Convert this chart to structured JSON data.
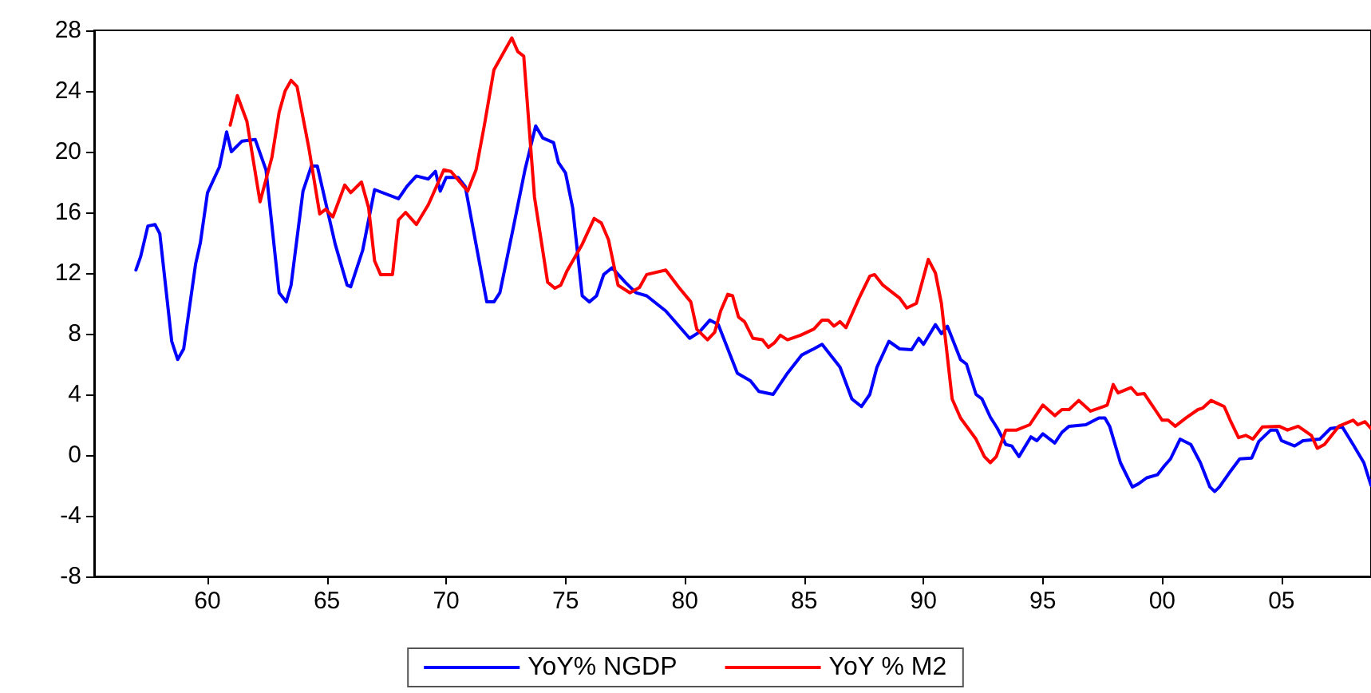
{
  "chart_data": {
    "type": "line",
    "xlim": [
      1955.25,
      2008.75
    ],
    "xticks": [
      {
        "value": 1960,
        "label": "60"
      },
      {
        "value": 1965,
        "label": "65"
      },
      {
        "value": 1970,
        "label": "70"
      },
      {
        "value": 1975,
        "label": "75"
      },
      {
        "value": 1980,
        "label": "80"
      },
      {
        "value": 1985,
        "label": "85"
      },
      {
        "value": 1990,
        "label": "90"
      },
      {
        "value": 1995,
        "label": "95"
      },
      {
        "value": 2000,
        "label": "00"
      },
      {
        "value": 2005,
        "label": "05"
      }
    ],
    "ylim": [
      -8,
      28
    ],
    "yticks": [
      -8,
      -4,
      0,
      4,
      8,
      12,
      16,
      20,
      24,
      28
    ],
    "grid": false,
    "legend": "bottom",
    "marker": "none",
    "line_style": "solid",
    "series": [
      {
        "name": "YoY% NGDP",
        "color": "#0000ff",
        "x": [
          1957.0,
          1957.2,
          1957.5,
          1957.8,
          1958.0,
          1958.5,
          1958.75,
          1959.0,
          1959.5,
          1959.7,
          1960.0,
          1960.5,
          1960.8,
          1961.0,
          1961.45,
          1962.0,
          1962.45,
          1963.0,
          1963.3,
          1963.5,
          1964.0,
          1964.35,
          1964.6,
          1965.35,
          1965.85,
          1966.0,
          1966.5,
          1967.0,
          1968.0,
          1968.35,
          1968.75,
          1969.25,
          1969.55,
          1969.75,
          1970.0,
          1970.5,
          1970.8,
          1971.7,
          1972.0,
          1972.25,
          1972.8,
          1973.3,
          1973.75,
          1974.05,
          1974.5,
          1974.7,
          1975.0,
          1975.3,
          1975.7,
          1976.0,
          1976.3,
          1976.6,
          1976.95,
          1977.5,
          1977.95,
          1978.4,
          1979.2,
          1980.2,
          1980.6,
          1981.05,
          1981.4,
          1982.2,
          1982.75,
          1983.1,
          1983.7,
          1984.3,
          1984.9,
          1985.4,
          1985.75,
          1986.0,
          1986.5,
          1987.0,
          1987.4,
          1987.75,
          1988.05,
          1988.55,
          1989.0,
          1989.5,
          1989.8,
          1990.0,
          1990.5,
          1990.75,
          1991.0,
          1991.55,
          1991.8,
          1992.2,
          1992.45,
          1992.8,
          1993.1,
          1993.45,
          1993.7,
          1994.0,
          1994.5,
          1994.75,
          1995.0,
          1995.5,
          1995.8,
          1996.1,
          1996.8,
          1997.35,
          1997.6,
          1997.8,
          1998.25,
          1998.75,
          1999.0,
          1999.35,
          1999.8,
          2000.1,
          2000.35,
          2000.75,
          2001.2,
          2001.6,
          2002.0,
          2002.2,
          2002.4,
          2002.8,
          2003.25,
          2003.75,
          2004.05,
          2004.55,
          2004.8,
          2005.0,
          2005.55,
          2005.9,
          2006.6,
          2007.05,
          2007.55,
          2008.0,
          2008.45,
          2008.75
        ],
        "values": [
          12.2,
          13.1,
          15.1,
          15.2,
          14.6,
          7.5,
          6.3,
          7.0,
          12.6,
          14.0,
          17.3,
          19.0,
          21.3,
          20.0,
          20.7,
          20.8,
          18.8,
          10.7,
          10.1,
          11.2,
          17.4,
          19.05,
          19.05,
          13.9,
          11.2,
          11.1,
          13.5,
          17.5,
          16.9,
          17.7,
          18.4,
          18.2,
          18.7,
          17.4,
          18.3,
          18.3,
          17.7,
          10.1,
          10.1,
          10.7,
          14.9,
          18.8,
          21.7,
          20.9,
          20.6,
          19.3,
          18.6,
          16.3,
          10.5,
          10.1,
          10.5,
          11.9,
          12.35,
          11.4,
          10.7,
          10.5,
          9.5,
          7.7,
          8.1,
          8.9,
          8.6,
          5.4,
          4.9,
          4.2,
          4.0,
          5.4,
          6.6,
          7.0,
          7.3,
          6.8,
          5.8,
          3.7,
          3.2,
          4.0,
          5.8,
          7.5,
          7.0,
          6.95,
          7.7,
          7.3,
          8.6,
          8.0,
          8.5,
          6.3,
          6.0,
          4.0,
          3.7,
          2.5,
          1.75,
          0.7,
          0.6,
          -0.1,
          1.2,
          0.95,
          1.4,
          0.8,
          1.5,
          1.9,
          2.0,
          2.45,
          2.45,
          1.9,
          -0.5,
          -2.1,
          -1.9,
          -1.5,
          -1.3,
          -0.7,
          -0.25,
          1.05,
          0.7,
          -0.5,
          -2.1,
          -2.4,
          -2.1,
          -1.2,
          -0.25,
          -0.2,
          0.9,
          1.65,
          1.65,
          0.95,
          0.6,
          0.95,
          1.05,
          1.75,
          1.85,
          0.7,
          -0.5,
          -2.0
        ]
      },
      {
        "name": "YoY % M2",
        "color": "#ff0000",
        "x": [
          1960.95,
          1961.25,
          1961.65,
          1962.2,
          1962.7,
          1963.0,
          1963.25,
          1963.5,
          1963.75,
          1964.25,
          1964.7,
          1964.95,
          1965.25,
          1965.75,
          1966.0,
          1966.45,
          1966.75,
          1967.0,
          1967.25,
          1967.75,
          1968.0,
          1968.3,
          1968.75,
          1969.25,
          1969.9,
          1970.2,
          1970.9,
          1971.25,
          1971.6,
          1972.0,
          1972.5,
          1972.75,
          1973.0,
          1973.25,
          1973.7,
          1974.25,
          1974.55,
          1974.8,
          1975.05,
          1975.7,
          1976.2,
          1976.5,
          1976.8,
          1977.2,
          1977.7,
          1978.1,
          1978.4,
          1979.2,
          1979.75,
          1980.25,
          1980.5,
          1980.95,
          1981.25,
          1981.5,
          1981.8,
          1982.0,
          1982.25,
          1982.5,
          1982.85,
          1983.25,
          1983.5,
          1983.75,
          1984.0,
          1984.3,
          1984.85,
          1985.4,
          1985.75,
          1986.0,
          1986.25,
          1986.5,
          1986.75,
          1987.3,
          1987.75,
          1987.95,
          1988.3,
          1989.0,
          1989.3,
          1989.7,
          1990.2,
          1990.5,
          1990.75,
          1991.2,
          1991.55,
          1992.2,
          1992.55,
          1992.8,
          1993.05,
          1993.45,
          1993.9,
          1994.45,
          1995.0,
          1995.5,
          1995.8,
          1996.1,
          1996.5,
          1997.0,
          1997.55,
          1997.7,
          1997.95,
          1998.15,
          1998.7,
          1998.95,
          1999.25,
          1999.7,
          2000.0,
          2000.25,
          2000.55,
          2001.0,
          2001.5,
          2001.7,
          2002.05,
          2002.6,
          2002.85,
          2003.2,
          2003.5,
          2003.8,
          2004.2,
          2004.9,
          2005.25,
          2005.7,
          2006.25,
          2006.5,
          2006.8,
          2007.4,
          2008.0,
          2008.2,
          2008.5,
          2008.75
        ],
        "values": [
          21.75,
          23.7,
          22.0,
          16.7,
          19.65,
          22.6,
          24.0,
          24.7,
          24.3,
          20.2,
          15.9,
          16.2,
          15.7,
          17.8,
          17.3,
          18.0,
          16.3,
          12.8,
          11.9,
          11.9,
          15.5,
          16.0,
          15.2,
          16.5,
          18.8,
          18.7,
          17.4,
          18.8,
          21.75,
          25.4,
          26.8,
          27.5,
          26.6,
          26.3,
          17.0,
          11.4,
          11.0,
          11.2,
          12.1,
          13.9,
          15.6,
          15.3,
          14.2,
          11.2,
          10.7,
          11.05,
          11.9,
          12.2,
          11.05,
          10.1,
          8.3,
          7.6,
          8.1,
          9.5,
          10.6,
          10.5,
          9.1,
          8.8,
          7.7,
          7.6,
          7.1,
          7.4,
          7.9,
          7.6,
          7.9,
          8.3,
          8.9,
          8.9,
          8.5,
          8.8,
          8.4,
          10.35,
          11.8,
          11.9,
          11.2,
          10.35,
          9.7,
          10.0,
          12.9,
          12.0,
          10.0,
          3.7,
          2.45,
          1.05,
          -0.1,
          -0.5,
          -0.1,
          1.65,
          1.65,
          2.0,
          3.3,
          2.6,
          3.0,
          3.0,
          3.6,
          2.9,
          3.2,
          3.3,
          4.65,
          4.1,
          4.45,
          4.0,
          4.05,
          3.0,
          2.3,
          2.3,
          1.9,
          2.45,
          3.0,
          3.1,
          3.6,
          3.2,
          2.3,
          1.15,
          1.3,
          1.05,
          1.85,
          1.9,
          1.65,
          1.9,
          1.3,
          0.45,
          0.7,
          1.9,
          2.3,
          2.0,
          2.2,
          1.75
        ]
      }
    ]
  }
}
